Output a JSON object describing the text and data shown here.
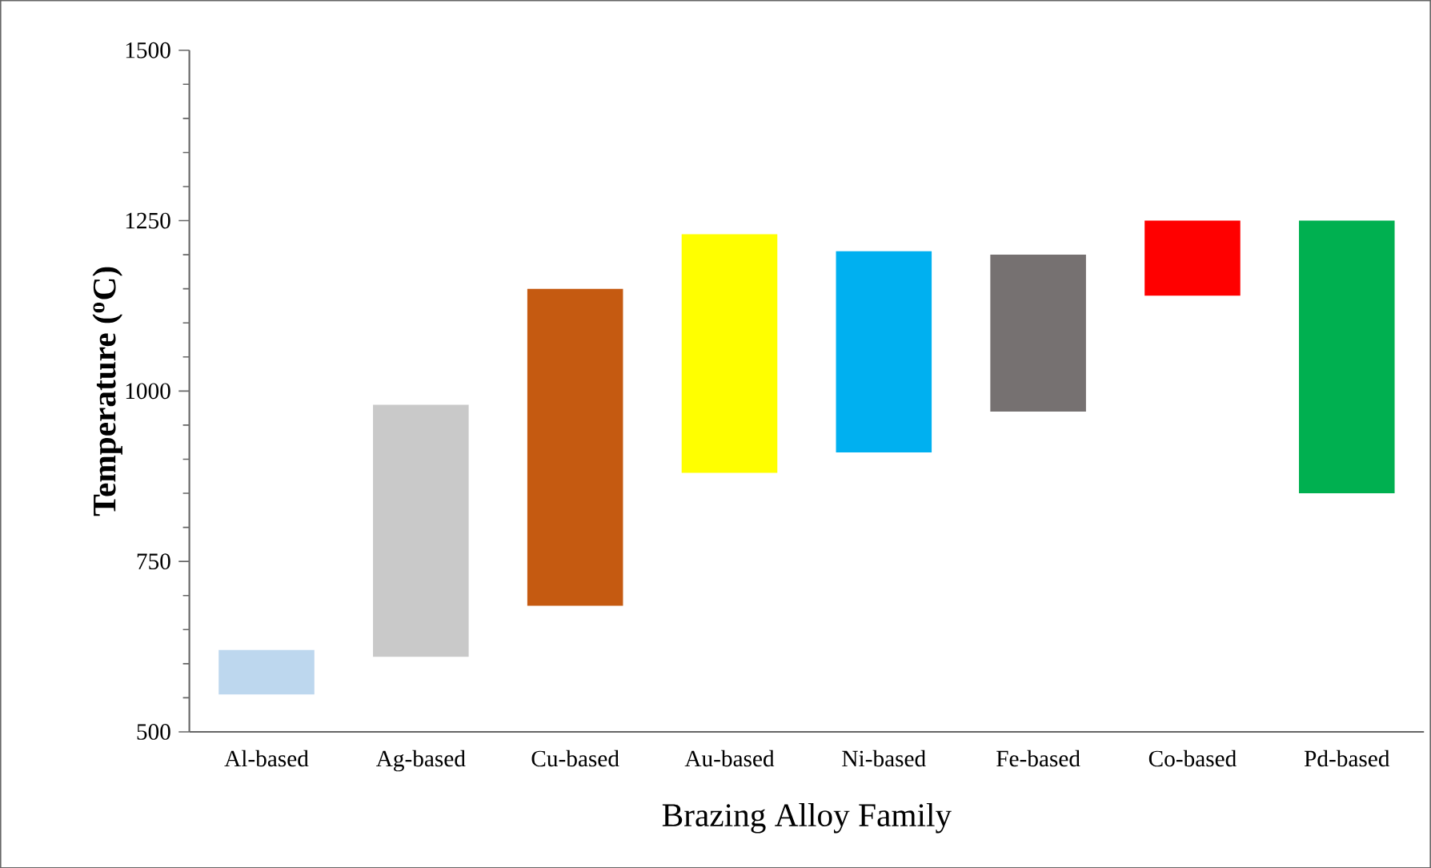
{
  "chart_data": {
    "type": "bar",
    "xlabel": "Brazing Alloy Family",
    "ylabel": "Temperature ($^{o}$C)",
    "categories": [
      "Al-based",
      "Ag-based",
      "Cu-based",
      "Au-based",
      "Ni-based",
      "Fe-based",
      "Co-based",
      "Pd-based"
    ],
    "base": [
      555,
      610,
      685,
      880,
      910,
      970,
      1140,
      850
    ],
    "values": [
      65,
      370,
      465,
      350,
      295,
      230,
      110,
      400
    ],
    "colors": [
      "#bdd7ee",
      "#c9c9c9",
      "#c55a11",
      "#ffff00",
      "#00b0f0",
      "#767171",
      "#ff0000",
      "#00b050"
    ],
    "ylim": [
      500,
      1500
    ],
    "yticks": [
      500,
      750,
      1000,
      1250,
      1500
    ]
  }
}
